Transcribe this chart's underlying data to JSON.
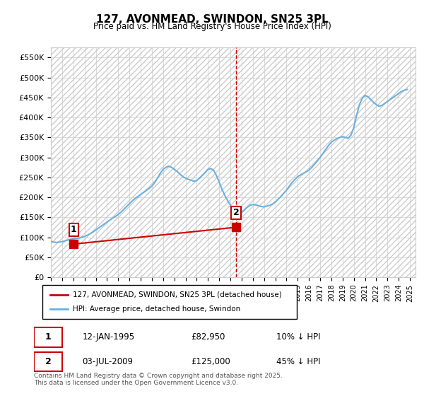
{
  "title": "127, AVONMEAD, SWINDON, SN25 3PL",
  "subtitle": "Price paid vs. HM Land Registry's House Price Index (HPI)",
  "ylabel_ticks": [
    "£0",
    "£50K",
    "£100K",
    "£150K",
    "£200K",
    "£250K",
    "£300K",
    "£350K",
    "£400K",
    "£450K",
    "£500K",
    "£550K"
  ],
  "ylim": [
    0,
    575000
  ],
  "xlim_start": 1993.0,
  "xlim_end": 2025.5,
  "x_ticks": [
    1993,
    1994,
    1995,
    1996,
    1997,
    1998,
    1999,
    2000,
    2001,
    2002,
    2003,
    2004,
    2005,
    2006,
    2007,
    2008,
    2009,
    2010,
    2011,
    2012,
    2013,
    2014,
    2015,
    2016,
    2017,
    2018,
    2019,
    2020,
    2021,
    2022,
    2023,
    2024,
    2025
  ],
  "vline_x": 2009.5,
  "vline_color": "#cc0000",
  "marker1_x": 1995.04,
  "marker1_y": 82950,
  "marker1_label": "1",
  "marker2_x": 2009.5,
  "marker2_y": 125000,
  "marker2_label": "2",
  "legend_line1": "127, AVONMEAD, SWINDON, SN25 3PL (detached house)",
  "legend_line2": "HPI: Average price, detached house, Swindon",
  "annotation1_date": "12-JAN-1995",
  "annotation1_price": "£82,950",
  "annotation1_hpi": "10% ↓ HPI",
  "annotation2_date": "03-JUL-2009",
  "annotation2_price": "£125,000",
  "annotation2_hpi": "45% ↓ HPI",
  "license_text": "Contains HM Land Registry data © Crown copyright and database right 2025.\nThis data is licensed under the Open Government Licence v3.0.",
  "hpi_color": "#6ab0e0",
  "price_color": "#cc0000",
  "background_color": "#ffffff",
  "hatch_color": "#dddddd",
  "hpi_data_x": [
    1993.0,
    1993.25,
    1993.5,
    1993.75,
    1994.0,
    1994.25,
    1994.5,
    1994.75,
    1995.0,
    1995.25,
    1995.5,
    1995.75,
    1996.0,
    1996.25,
    1996.5,
    1996.75,
    1997.0,
    1997.25,
    1997.5,
    1997.75,
    1998.0,
    1998.25,
    1998.5,
    1998.75,
    1999.0,
    1999.25,
    1999.5,
    1999.75,
    2000.0,
    2000.25,
    2000.5,
    2000.75,
    2001.0,
    2001.25,
    2001.5,
    2001.75,
    2002.0,
    2002.25,
    2002.5,
    2002.75,
    2003.0,
    2003.25,
    2003.5,
    2003.75,
    2004.0,
    2004.25,
    2004.5,
    2004.75,
    2005.0,
    2005.25,
    2005.5,
    2005.75,
    2006.0,
    2006.25,
    2006.5,
    2006.75,
    2007.0,
    2007.25,
    2007.5,
    2007.75,
    2008.0,
    2008.25,
    2008.5,
    2008.75,
    2009.0,
    2009.25,
    2009.5,
    2009.75,
    2010.0,
    2010.25,
    2010.5,
    2010.75,
    2011.0,
    2011.25,
    2011.5,
    2011.75,
    2012.0,
    2012.25,
    2012.5,
    2012.75,
    2013.0,
    2013.25,
    2013.5,
    2013.75,
    2014.0,
    2014.25,
    2014.5,
    2014.75,
    2015.0,
    2015.25,
    2015.5,
    2015.75,
    2016.0,
    2016.25,
    2016.5,
    2016.75,
    2017.0,
    2017.25,
    2017.5,
    2017.75,
    2018.0,
    2018.25,
    2018.5,
    2018.75,
    2019.0,
    2019.25,
    2019.5,
    2019.75,
    2020.0,
    2020.25,
    2020.5,
    2020.75,
    2021.0,
    2021.25,
    2021.5,
    2021.75,
    2022.0,
    2022.25,
    2022.5,
    2022.75,
    2023.0,
    2023.25,
    2023.5,
    2023.75,
    2024.0,
    2024.25,
    2024.5,
    2024.75
  ],
  "hpi_data_y": [
    90000,
    88000,
    87000,
    88000,
    89000,
    91000,
    93000,
    95000,
    96000,
    97000,
    98000,
    100000,
    102000,
    105000,
    109000,
    113000,
    118000,
    123000,
    128000,
    133000,
    138000,
    143000,
    148000,
    152000,
    157000,
    163000,
    170000,
    177000,
    184000,
    191000,
    197000,
    202000,
    207000,
    212000,
    217000,
    222000,
    228000,
    237000,
    248000,
    260000,
    270000,
    275000,
    278000,
    275000,
    270000,
    265000,
    258000,
    252000,
    248000,
    245000,
    243000,
    240000,
    242000,
    248000,
    255000,
    262000,
    270000,
    272000,
    268000,
    255000,
    238000,
    220000,
    205000,
    192000,
    180000,
    170000,
    163000,
    160000,
    162000,
    168000,
    175000,
    180000,
    182000,
    181000,
    179000,
    177000,
    176000,
    178000,
    180000,
    183000,
    188000,
    195000,
    202000,
    210000,
    218000,
    228000,
    237000,
    245000,
    252000,
    256000,
    260000,
    264000,
    268000,
    275000,
    283000,
    291000,
    300000,
    310000,
    320000,
    330000,
    338000,
    343000,
    347000,
    350000,
    352000,
    350000,
    348000,
    356000,
    375000,
    405000,
    432000,
    448000,
    455000,
    452000,
    445000,
    438000,
    432000,
    428000,
    430000,
    435000,
    440000,
    445000,
    450000,
    455000,
    460000,
    465000,
    468000,
    470000
  ],
  "price_data_x": [
    1995.04,
    2009.5
  ],
  "price_data_y": [
    82950,
    125000
  ]
}
